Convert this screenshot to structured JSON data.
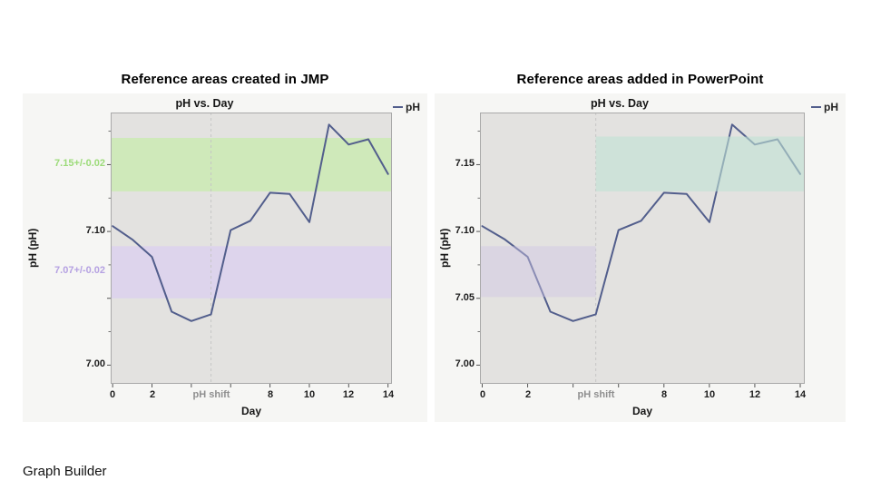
{
  "slide": {
    "footer": "Graph Builder"
  },
  "chart_data": [
    {
      "type": "line",
      "heading": "Reference areas created in JMP",
      "title": "pH vs. Day",
      "legend": {
        "label": "pH"
      },
      "xaxis": {
        "title": "Day",
        "majors": [
          0,
          2,
          4,
          6,
          8,
          10,
          12,
          14
        ],
        "labels": [
          {
            "v": 0,
            "label": "0"
          },
          {
            "v": 2,
            "label": "2"
          },
          {
            "v": 5,
            "label": "pH shift",
            "muted": true
          },
          {
            "v": 8,
            "label": "8"
          },
          {
            "v": 10,
            "label": "10"
          },
          {
            "v": 12,
            "label": "12"
          },
          {
            "v": 14,
            "label": "14"
          }
        ]
      },
      "yaxis": {
        "title": "pH (pH)",
        "majors": [
          7.0,
          7.05,
          7.1,
          7.15
        ],
        "minors": [
          7.025,
          7.075,
          7.125,
          7.175
        ],
        "labels": [
          {
            "v": 7.15,
            "label": "7.15+/-0.02",
            "color": "#9cdb79"
          },
          {
            "v": 7.1,
            "label": "7.10"
          },
          {
            "v": 7.07,
            "label": "7.07+/-0.02",
            "color": "#b5a1e2"
          },
          {
            "v": 7.0,
            "label": "7.00"
          }
        ]
      },
      "xlim": [
        -0.1,
        14.2
      ],
      "ylim": [
        6.986,
        7.189
      ],
      "x": [
        0,
        1,
        2,
        3,
        4,
        5,
        6,
        7,
        8,
        9,
        10,
        11,
        12,
        13,
        14
      ],
      "y": [
        7.104,
        7.094,
        7.081,
        7.04,
        7.033,
        7.038,
        7.101,
        7.108,
        7.129,
        7.128,
        7.107,
        7.18,
        7.165,
        7.169,
        7.143
      ],
      "vline": {
        "x": 5,
        "color": "#c6c6c6"
      },
      "bands": [
        {
          "lo": 7.13,
          "hi": 7.17,
          "label": "7.15+/-0.02",
          "color": "#cfe9ba",
          "opacity": 1,
          "span": "full",
          "overlay": false
        },
        {
          "lo": 7.05,
          "hi": 7.089,
          "label": "7.07+/-0.02",
          "color": "#ddd4ec",
          "opacity": 1,
          "span": "full",
          "overlay": false
        }
      ],
      "line": {
        "color": "#525e8c",
        "width": 2
      },
      "colors": {
        "plot_bg": "#e3e2e0",
        "plot_border": "#a9a9a9",
        "tick": "#555555"
      }
    },
    {
      "type": "line",
      "heading": "Reference areas added in PowerPoint",
      "title": "pH vs. Day",
      "legend": {
        "label": "pH"
      },
      "xaxis": {
        "title": "Day",
        "majors": [
          0,
          2,
          4,
          6,
          8,
          10,
          12,
          14
        ],
        "labels": [
          {
            "v": 0,
            "label": "0"
          },
          {
            "v": 2,
            "label": "2"
          },
          {
            "v": 5,
            "label": "pH shift",
            "muted": true
          },
          {
            "v": 8,
            "label": "8"
          },
          {
            "v": 10,
            "label": "10"
          },
          {
            "v": 12,
            "label": "12"
          },
          {
            "v": 14,
            "label": "14"
          }
        ]
      },
      "yaxis": {
        "title": "pH (pH)",
        "majors": [
          7.0,
          7.05,
          7.1,
          7.15
        ],
        "minors": [
          7.025,
          7.075,
          7.125,
          7.175
        ],
        "labels": [
          {
            "v": 7.15,
            "label": "7.15"
          },
          {
            "v": 7.1,
            "label": "7.10"
          },
          {
            "v": 7.05,
            "label": "7.05"
          },
          {
            "v": 7.0,
            "label": "7.00"
          }
        ]
      },
      "xlim": [
        -0.1,
        14.2
      ],
      "ylim": [
        6.986,
        7.189
      ],
      "x": [
        0,
        1,
        2,
        3,
        4,
        5,
        6,
        7,
        8,
        9,
        10,
        11,
        12,
        13,
        14
      ],
      "y": [
        7.104,
        7.094,
        7.081,
        7.04,
        7.033,
        7.038,
        7.101,
        7.108,
        7.129,
        7.128,
        7.107,
        7.18,
        7.165,
        7.169,
        7.143
      ],
      "vline": {
        "x": 5,
        "color": "#c6c6c6"
      },
      "bands": [
        {
          "lo": 7.051,
          "hi": 7.089,
          "color": "#cfc5e4",
          "opacity": 0.45,
          "span": "left",
          "overlay": true
        },
        {
          "lo": 7.13,
          "hi": 7.171,
          "color": "#bfe3d4",
          "opacity": 0.6,
          "span": "right",
          "overlay": true
        }
      ],
      "line": {
        "color": "#525e8c",
        "width": 2
      },
      "colors": {
        "plot_bg": "#e3e2e0",
        "plot_border": "#a9a9a9",
        "tick": "#555555"
      }
    }
  ]
}
